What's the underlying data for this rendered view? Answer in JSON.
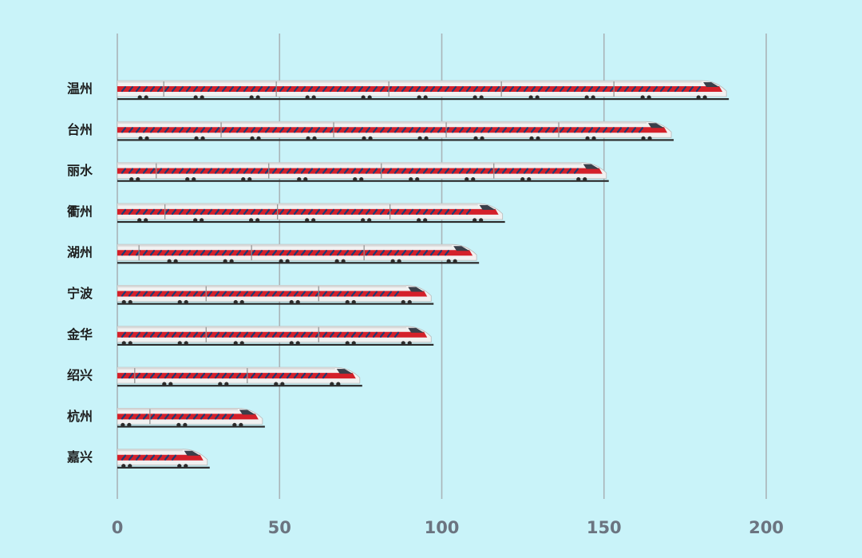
{
  "colors": {
    "background": "#c9f3f9",
    "gridline": "#a9b4b8",
    "train_body": "#f1f1f1",
    "train_stripe": "#d4202a",
    "train_window": "#1f3b73",
    "train_rail": "#2b2b2b"
  },
  "chart_data": {
    "type": "bar",
    "orientation": "horizontal",
    "mark": "high-speed-train pictogram",
    "categories": [
      "温州",
      "台州",
      "丽水",
      "衢州",
      "湖州",
      "宁波",
      "金华",
      "绍兴",
      "杭州",
      "嘉兴"
    ],
    "values": [
      187,
      170,
      150,
      118,
      110,
      96,
      96,
      74,
      44,
      27
    ],
    "xlim": [
      0,
      200
    ],
    "xticks": [
      "0",
      "50",
      "100",
      "150",
      "200"
    ],
    "grid": "vertical",
    "title": "",
    "xlabel": "",
    "ylabel": ""
  }
}
